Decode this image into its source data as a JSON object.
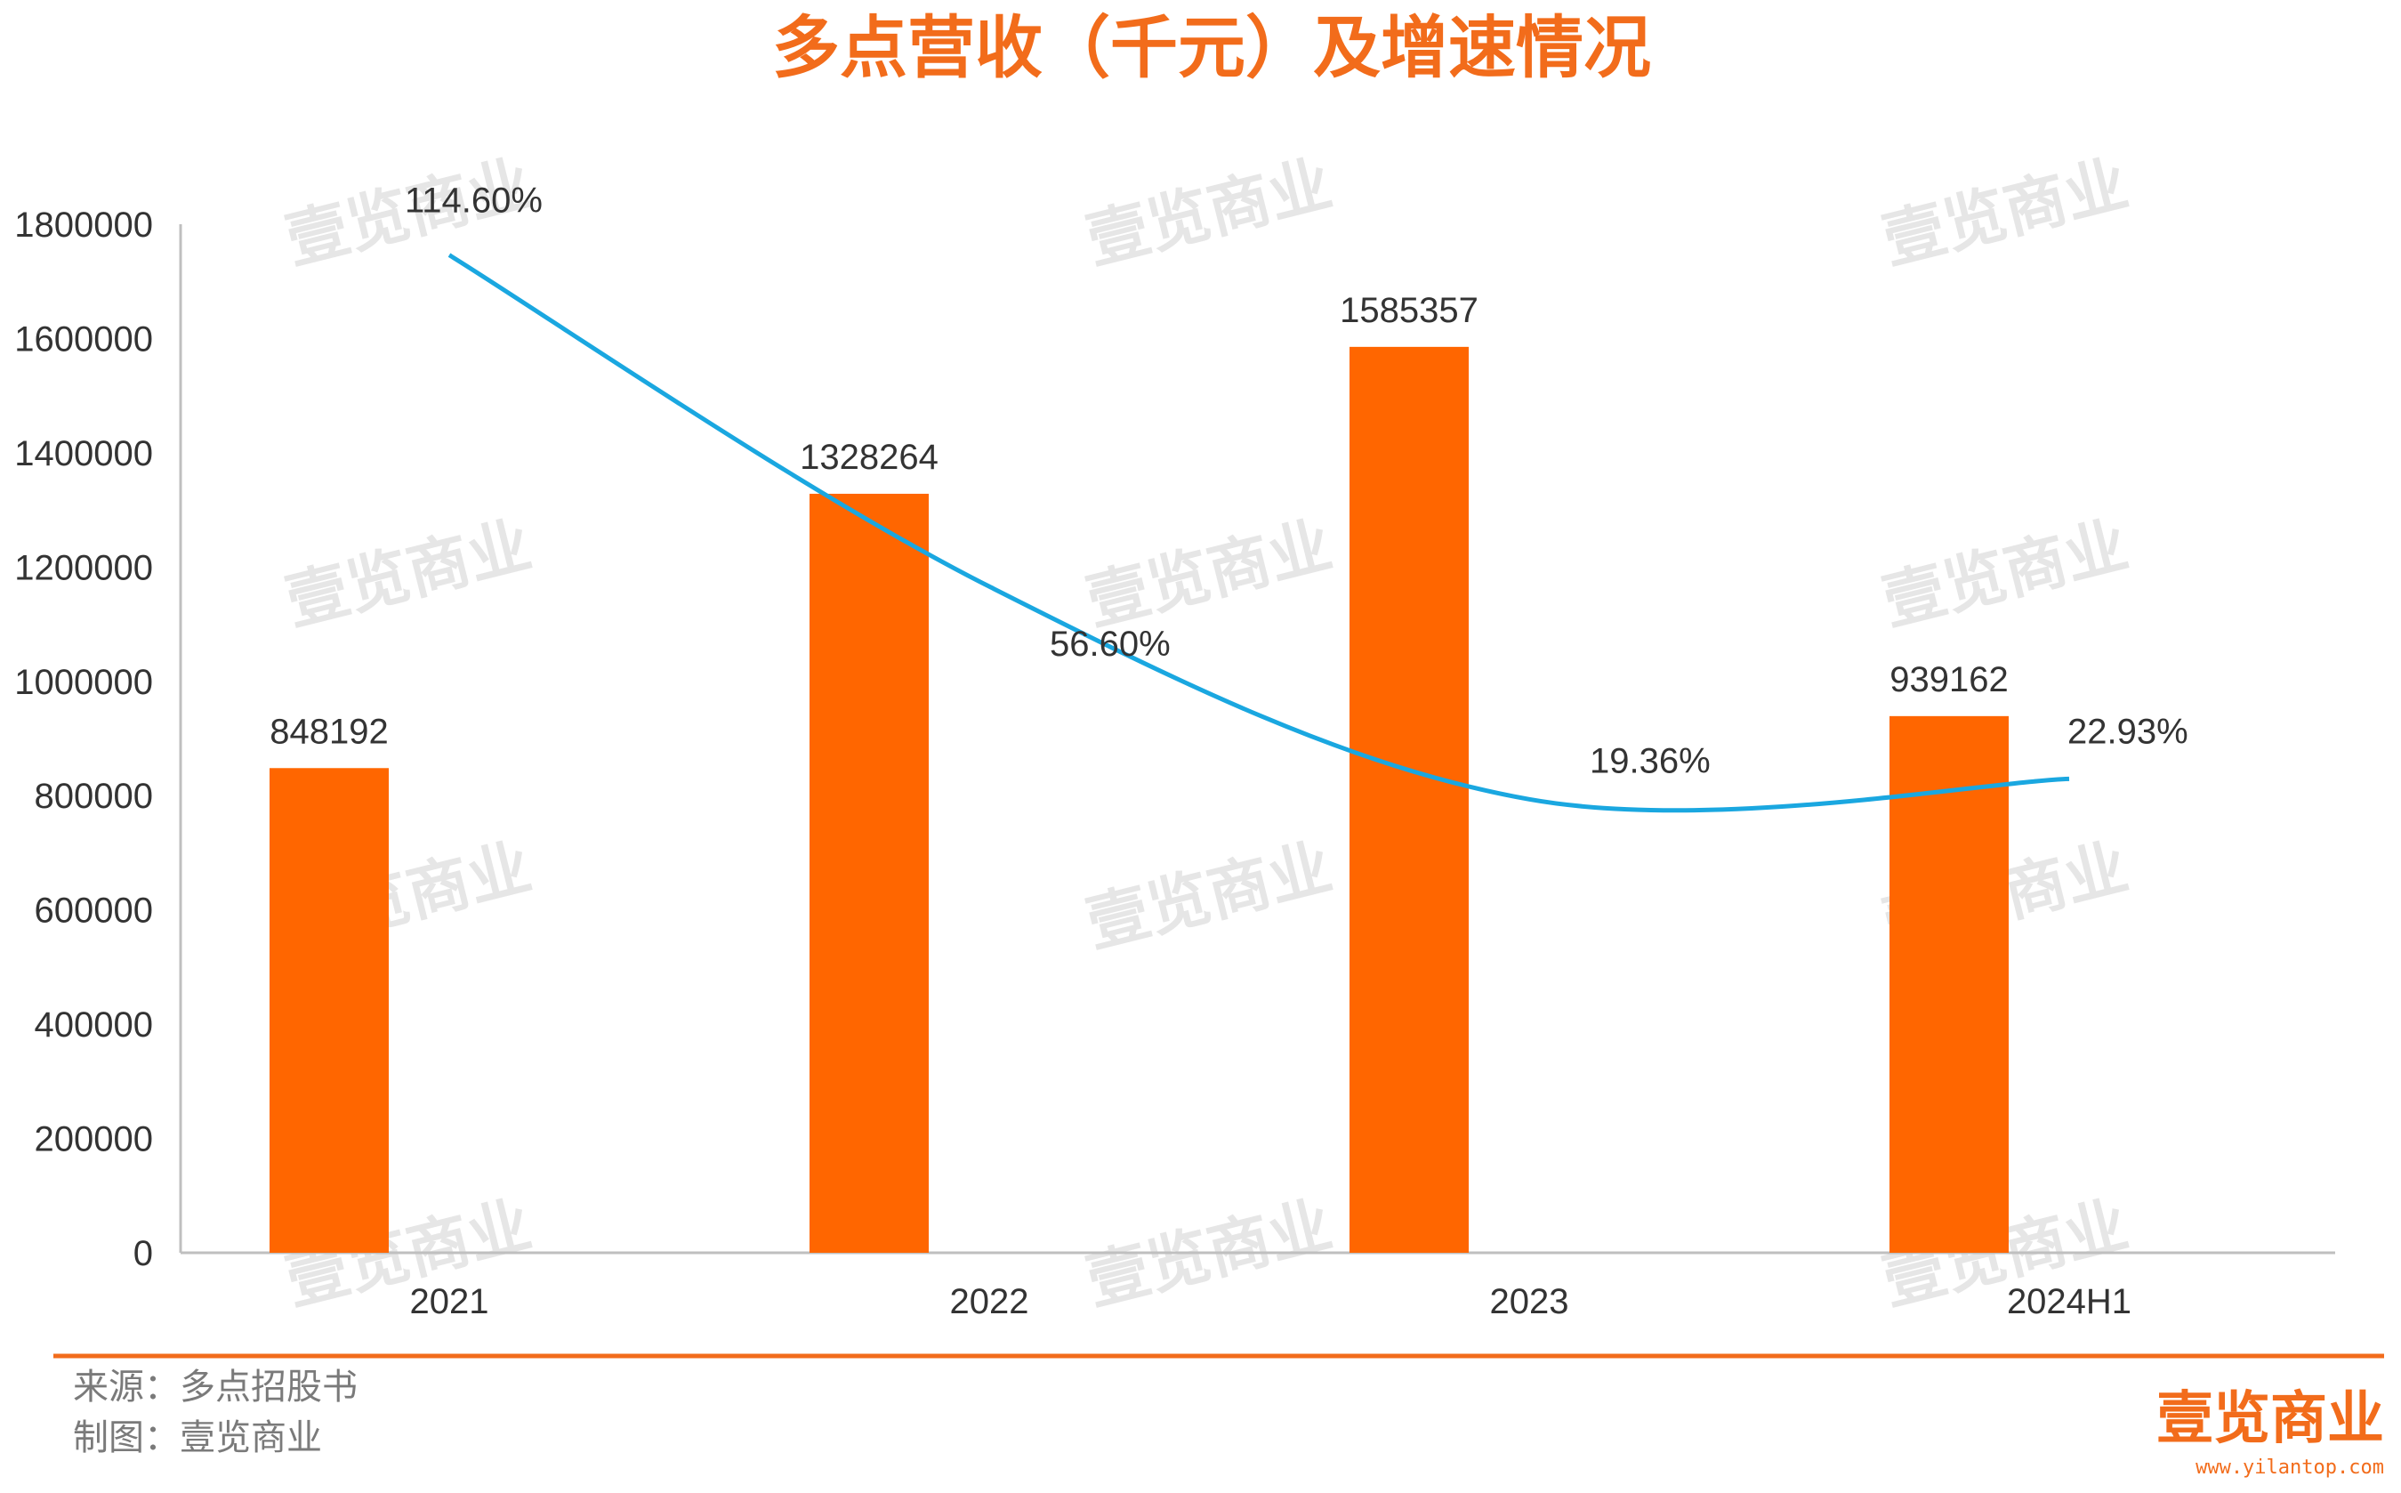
{
  "colors": {
    "accent": "#f26c1b",
    "bar": "#ff6600",
    "line": "#1aa7e0",
    "watermark": "#e6e6e6",
    "text": "#333333",
    "footer_text": "#7a7a7a"
  },
  "watermark_text": "壹览商业",
  "footer": {
    "source": "来源：多点招股书",
    "made_by": "制图：壹览商业"
  },
  "logo": {
    "name": "壹览商业",
    "url": "www.yilantop.com"
  },
  "chart_data": {
    "type": "bar",
    "title": "多点营收（千元）及增速情况",
    "categories": [
      "2021",
      "2022",
      "2023",
      "2024H1"
    ],
    "ylim": [
      0,
      1800000
    ],
    "yticks": [
      "0",
      "200000",
      "400000",
      "600000",
      "800000",
      "1000000",
      "1200000",
      "1400000",
      "1600000",
      "1800000"
    ],
    "grid": false,
    "legend": "none",
    "series": [
      {
        "type": "bar",
        "values": [
          848192,
          1328264,
          1585357,
          939162
        ],
        "labels": [
          "848192",
          "1328264",
          "1585357",
          "939162"
        ]
      },
      {
        "type": "line",
        "axis": "secondary",
        "values": [
          114.6,
          56.6,
          19.36,
          22.93
        ],
        "labels": [
          "114.60%",
          "56.60%",
          "19.36%",
          "22.93%"
        ],
        "axis_visible": false
      }
    ]
  }
}
